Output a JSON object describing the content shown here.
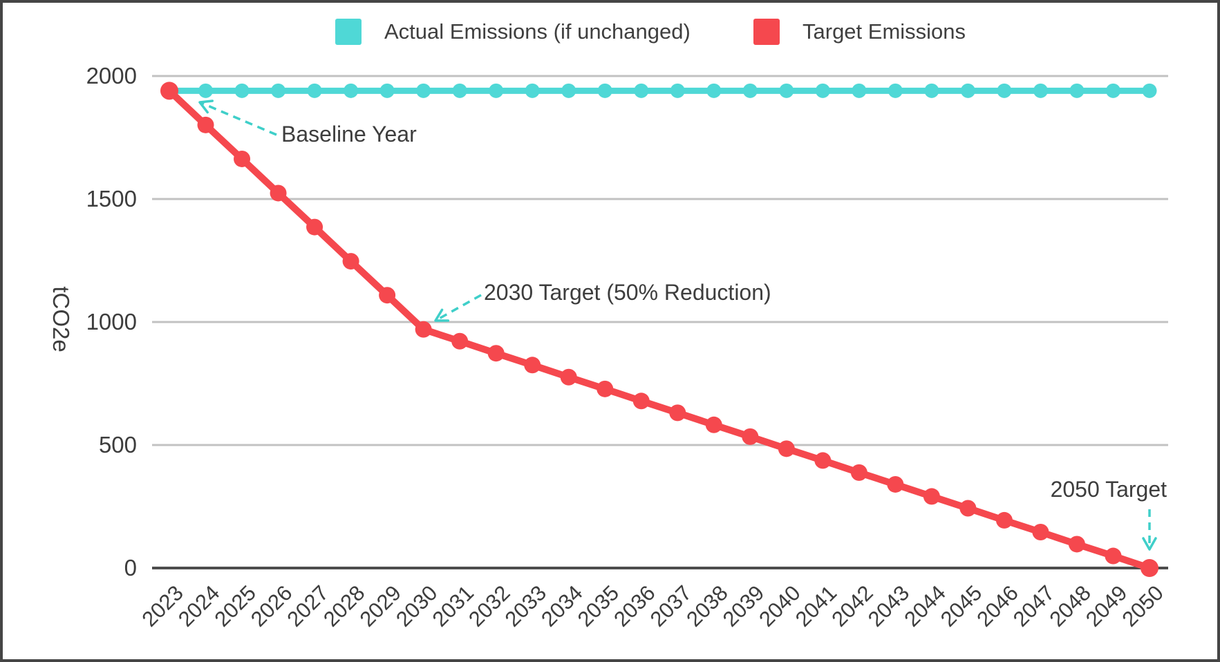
{
  "chart_data": {
    "type": "line",
    "title": "",
    "xlabel": "",
    "ylabel": "tCO2e",
    "x": [
      2023,
      2024,
      2025,
      2026,
      2027,
      2028,
      2029,
      2030,
      2031,
      2032,
      2033,
      2034,
      2035,
      2036,
      2037,
      2038,
      2039,
      2040,
      2041,
      2042,
      2043,
      2044,
      2045,
      2046,
      2047,
      2048,
      2049,
      2050
    ],
    "yticks": [
      0,
      500,
      1000,
      1500,
      2000
    ],
    "ylim": [
      0,
      2000
    ],
    "grid": "horizontal",
    "legend_position": "top",
    "series": [
      {
        "name": "Actual Emissions (if unchanged)",
        "color": "#4FD8D6",
        "values": [
          1940,
          1940,
          1940,
          1940,
          1940,
          1940,
          1940,
          1940,
          1940,
          1940,
          1940,
          1940,
          1940,
          1940,
          1940,
          1940,
          1940,
          1940,
          1940,
          1940,
          1940,
          1940,
          1940,
          1940,
          1940,
          1940,
          1940,
          1940
        ]
      },
      {
        "name": "Target Emissions",
        "color": "#F5484E",
        "values": [
          1940,
          1801,
          1663,
          1524,
          1386,
          1247,
          1109,
          970,
          922,
          873,
          825,
          776,
          728,
          679,
          631,
          582,
          534,
          485,
          437,
          388,
          340,
          291,
          243,
          194,
          146,
          97,
          49,
          0
        ]
      }
    ],
    "annotations": [
      {
        "label": "Baseline Year",
        "year": 2023,
        "value": 1940
      },
      {
        "label": "2030 Target (50% Reduction)",
        "year": 2030,
        "value": 970
      },
      {
        "label": "2050 Target",
        "year": 2050,
        "value": 0
      }
    ]
  },
  "colors": {
    "actual_series": "#4FD8D6",
    "target_series": "#F5484E",
    "annotation_arrow": "#3FCFC9",
    "grid_line": "#C2C2C2",
    "axis_line": "#4D4D4D",
    "text": "#3D3D3D",
    "frame_border": "#454545"
  }
}
